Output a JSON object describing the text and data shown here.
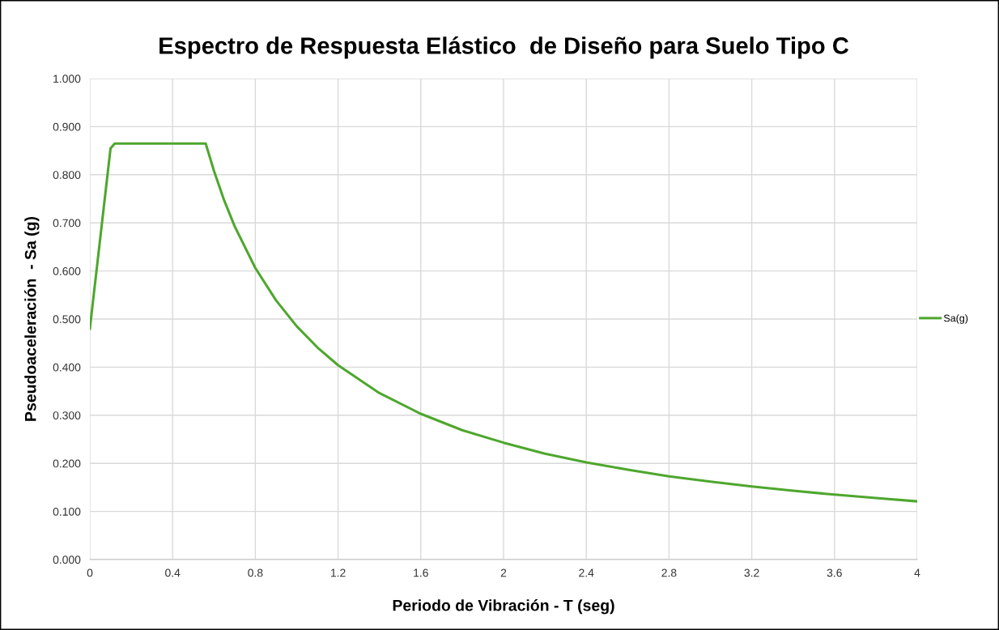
{
  "chart_data": {
    "type": "line",
    "title": "Espectro de Respuesta Elástico  de Diseño para Suelo Tipo C",
    "xlabel": "Periodo de Vibración - T (seg)",
    "ylabel": "Pseudoaceleración  - Sa (g)",
    "x": [
      0,
      0.1,
      0.12,
      0.56,
      0.6,
      0.65,
      0.7,
      0.8,
      0.9,
      1.0,
      1.1,
      1.2,
      1.4,
      1.6,
      1.8,
      2.0,
      2.2,
      2.4,
      2.6,
      2.8,
      3.0,
      3.2,
      3.4,
      3.6,
      3.8,
      4.0
    ],
    "series": [
      {
        "name": "Sa(g)",
        "color": "#4ea72e",
        "values": [
          0.48,
          0.855,
          0.865,
          0.865,
          0.808,
          0.746,
          0.693,
          0.606,
          0.539,
          0.485,
          0.441,
          0.404,
          0.346,
          0.303,
          0.269,
          0.243,
          0.22,
          0.202,
          0.187,
          0.173,
          0.162,
          0.152,
          0.143,
          0.135,
          0.128,
          0.121
        ]
      }
    ],
    "xlim": [
      0,
      4
    ],
    "xticks": [
      0,
      0.4,
      0.8,
      1.2,
      1.6,
      2,
      2.4,
      2.8,
      3.2,
      3.6,
      4
    ],
    "ylim": [
      0,
      1
    ],
    "yticks": [
      {
        "value": 0,
        "label": "0.000"
      },
      {
        "value": 0.1,
        "label": "0.100"
      },
      {
        "value": 0.2,
        "label": "0.200"
      },
      {
        "value": 0.3,
        "label": "0.300"
      },
      {
        "value": 0.4,
        "label": "0.400"
      },
      {
        "value": 0.5,
        "label": "0.500"
      },
      {
        "value": 0.6,
        "label": "0.600"
      },
      {
        "value": 0.7,
        "label": "0.700"
      },
      {
        "value": 0.8,
        "label": "0.800"
      },
      {
        "value": 0.9,
        "label": "0.900"
      },
      {
        "value": 1,
        "label": "1.000"
      }
    ],
    "grid": true,
    "legend": "right",
    "marker": "none",
    "line_style": "solid"
  }
}
